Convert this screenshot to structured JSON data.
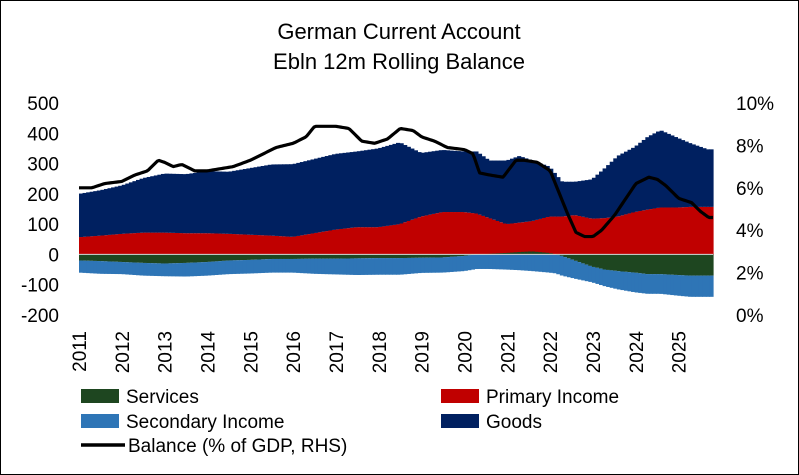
{
  "chart_data": {
    "type": "area",
    "title": [
      "German Current Account",
      "Ebln 12m Rolling Balance"
    ],
    "x_ticks": [
      "2011",
      "2012",
      "2013",
      "2014",
      "2015",
      "2016",
      "2017",
      "2018",
      "2019",
      "2020",
      "2021",
      "2022",
      "2023",
      "2024",
      "2025"
    ],
    "x_range": [
      2011.0,
      2025.8
    ],
    "y_left": {
      "ticks": [
        "500",
        "400",
        "300",
        "200",
        "100",
        "0",
        "-100",
        "-200"
      ],
      "min": -200,
      "max": 500
    },
    "y_right": {
      "ticks": [
        "10%",
        "8%",
        "6%",
        "4%",
        "2%",
        "0%"
      ],
      "min": 0,
      "max": 10
    },
    "colors": {
      "services": "#1e4620",
      "primary": "#c00000",
      "secondary": "#2e75b6",
      "goods": "#002060",
      "balance": "#000000"
    },
    "series": [
      {
        "name": "Goods",
        "color_key": "goods",
        "stack": "positive",
        "x": [
          2011.0,
          2011.5,
          2012.0,
          2012.5,
          2013.0,
          2013.5,
          2014.0,
          2014.5,
          2015.0,
          2015.5,
          2016.0,
          2016.5,
          2017.0,
          2017.5,
          2018.0,
          2018.5,
          2019.0,
          2019.5,
          2020.0,
          2020.3,
          2020.6,
          2021.0,
          2021.3,
          2021.6,
          2022.0,
          2022.3,
          2022.6,
          2023.0,
          2023.3,
          2023.6,
          2024.0,
          2024.3,
          2024.6,
          2025.0,
          2025.3,
          2025.7
        ],
        "values": [
          143,
          150,
          160,
          180,
          195,
          195,
          205,
          205,
          220,
          235,
          240,
          245,
          250,
          250,
          260,
          270,
          210,
          205,
          200,
          205,
          190,
          210,
          220,
          200,
          165,
          115,
          110,
          130,
          165,
          200,
          215,
          240,
          255,
          230,
          210,
          190
        ]
      },
      {
        "name": "Primary Income",
        "color_key": "primary",
        "stack": "positive",
        "x": [
          2011.0,
          2011.5,
          2012.0,
          2012.5,
          2013.0,
          2013.5,
          2014.0,
          2014.5,
          2015.0,
          2015.5,
          2016.0,
          2016.5,
          2017.0,
          2017.5,
          2018.0,
          2018.5,
          2019.0,
          2019.5,
          2020.0,
          2020.3,
          2020.6,
          2021.0,
          2021.3,
          2021.6,
          2022.0,
          2022.3,
          2022.6,
          2023.0,
          2023.3,
          2023.6,
          2024.0,
          2024.3,
          2024.6,
          2025.0,
          2025.3,
          2025.7
        ],
        "values": [
          57,
          62,
          68,
          72,
          72,
          70,
          70,
          68,
          65,
          62,
          58,
          70,
          82,
          90,
          90,
          100,
          125,
          140,
          140,
          135,
          120,
          100,
          105,
          110,
          125,
          125,
          130,
          118,
          120,
          125,
          140,
          148,
          155,
          155,
          157,
          157
        ]
      },
      {
        "name": "Services",
        "color_key": "services",
        "stack": "negative",
        "x": [
          2011.0,
          2011.5,
          2012.0,
          2012.5,
          2013.0,
          2013.5,
          2014.0,
          2014.5,
          2015.0,
          2015.5,
          2016.0,
          2016.5,
          2017.0,
          2017.5,
          2018.0,
          2018.5,
          2019.0,
          2019.5,
          2020.0,
          2020.3,
          2020.6,
          2021.0,
          2021.3,
          2021.6,
          2022.0,
          2022.3,
          2022.6,
          2023.0,
          2023.3,
          2023.6,
          2024.0,
          2024.3,
          2024.6,
          2025.0,
          2025.3,
          2025.7
        ],
        "values": [
          -20,
          -22,
          -25,
          -28,
          -30,
          -28,
          -25,
          -20,
          -18,
          -15,
          -15,
          -14,
          -14,
          -13,
          -12,
          -12,
          -11,
          -10,
          -5,
          0,
          2,
          5,
          8,
          10,
          5,
          -5,
          -20,
          -40,
          -50,
          -55,
          -60,
          -65,
          -65,
          -68,
          -70,
          -70
        ]
      },
      {
        "name": "Secondary Income",
        "color_key": "secondary",
        "stack": "negative",
        "x": [
          2011.0,
          2011.5,
          2012.0,
          2012.5,
          2013.0,
          2013.5,
          2014.0,
          2014.5,
          2015.0,
          2015.5,
          2016.0,
          2016.5,
          2017.0,
          2017.5,
          2018.0,
          2018.5,
          2019.0,
          2019.5,
          2020.0,
          2020.3,
          2020.6,
          2021.0,
          2021.3,
          2021.6,
          2022.0,
          2022.3,
          2022.6,
          2023.0,
          2023.3,
          2023.6,
          2024.0,
          2024.3,
          2024.6,
          2025.0,
          2025.3,
          2025.7
        ],
        "values": [
          -40,
          -42,
          -40,
          -42,
          -42,
          -45,
          -45,
          -45,
          -45,
          -45,
          -45,
          -50,
          -52,
          -55,
          -55,
          -55,
          -50,
          -50,
          -50,
          -48,
          -48,
          -50,
          -52,
          -55,
          -60,
          -65,
          -60,
          -52,
          -55,
          -60,
          -65,
          -65,
          -65,
          -68,
          -70,
          -70
        ]
      },
      {
        "name": "Balance (% of GDP, RHS)",
        "color_key": "balance",
        "axis": "right",
        "kind": "line",
        "x": [
          2011.0,
          2011.3,
          2011.6,
          2012.0,
          2012.3,
          2012.6,
          2012.85,
          2013.0,
          2013.2,
          2013.4,
          2013.7,
          2014.0,
          2014.3,
          2014.6,
          2015.0,
          2015.3,
          2015.6,
          2016.0,
          2016.3,
          2016.5,
          2016.7,
          2017.0,
          2017.3,
          2017.6,
          2017.9,
          2018.2,
          2018.5,
          2018.8,
          2019.0,
          2019.3,
          2019.6,
          2020.0,
          2020.2,
          2020.35,
          2020.6,
          2020.9,
          2021.2,
          2021.4,
          2021.7,
          2022.0,
          2022.2,
          2022.4,
          2022.6,
          2022.8,
          2023.0,
          2023.2,
          2023.5,
          2023.8,
          2024.0,
          2024.3,
          2024.5,
          2024.7,
          2025.0,
          2025.3,
          2025.5,
          2025.7
        ],
        "values": [
          6.0,
          6.0,
          6.2,
          6.3,
          6.6,
          6.8,
          7.3,
          7.2,
          7.0,
          7.1,
          6.8,
          6.8,
          6.9,
          7.0,
          7.3,
          7.6,
          7.9,
          8.1,
          8.4,
          8.9,
          8.9,
          8.9,
          8.8,
          8.2,
          8.1,
          8.3,
          8.8,
          8.7,
          8.4,
          8.2,
          7.9,
          7.8,
          7.6,
          6.7,
          6.6,
          6.5,
          7.3,
          7.3,
          7.2,
          6.8,
          5.8,
          4.8,
          3.9,
          3.7,
          3.7,
          4.0,
          4.7,
          5.6,
          6.2,
          6.5,
          6.4,
          6.1,
          5.5,
          5.3,
          4.9,
          4.6
        ]
      }
    ],
    "legend": [
      {
        "label": "Services",
        "color_key": "services",
        "kind": "box"
      },
      {
        "label": "Primary Income",
        "color_key": "primary",
        "kind": "box"
      },
      {
        "label": "Secondary Income",
        "color_key": "secondary",
        "kind": "box"
      },
      {
        "label": "Goods",
        "color_key": "goods",
        "kind": "box"
      },
      {
        "label": "Balance (% of GDP, RHS)",
        "color_key": "balance",
        "kind": "line"
      }
    ]
  }
}
